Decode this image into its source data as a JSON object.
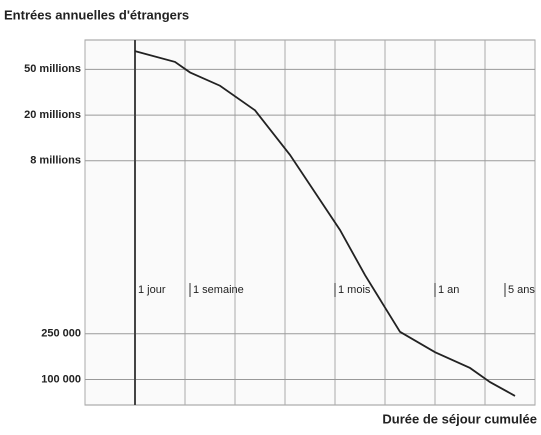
{
  "chart_data": {
    "type": "line",
    "title": "Entrées annuelles d'étrangers",
    "x_label": "Durée de séjour cumulée",
    "x": [
      1,
      1.8,
      2.1,
      2.7,
      3.4,
      4.1,
      5.1,
      5.6,
      6.3,
      7,
      7.7,
      8.1,
      8.6
    ],
    "values": [
      72000000,
      58000000,
      47000000,
      36000000,
      22000000,
      9000000,
      2000000,
      810000,
      260000,
      173000,
      126000,
      95000,
      72000
    ],
    "color": "#222222",
    "xlim": [
      0,
      9
    ],
    "xticks": [
      {
        "value": 1,
        "label": "1 jour"
      },
      {
        "value": 2.1,
        "label": "1 semaine"
      },
      {
        "value": 5,
        "label": "1 mois"
      },
      {
        "value": 7,
        "label": "1 an"
      },
      {
        "value": 8.4,
        "label": "5 ans"
      }
    ],
    "ylim": [
      60000,
      90000000
    ],
    "yticks": [
      {
        "value": 50000000,
        "label": "50 millions"
      },
      {
        "value": 20000000,
        "label": "20 millions"
      },
      {
        "value": 8000000,
        "label": "8 millions"
      },
      {
        "value": 250000,
        "label": "250 000"
      },
      {
        "value": 100000,
        "label": "100 000"
      }
    ],
    "log_y": true,
    "grid": true
  }
}
